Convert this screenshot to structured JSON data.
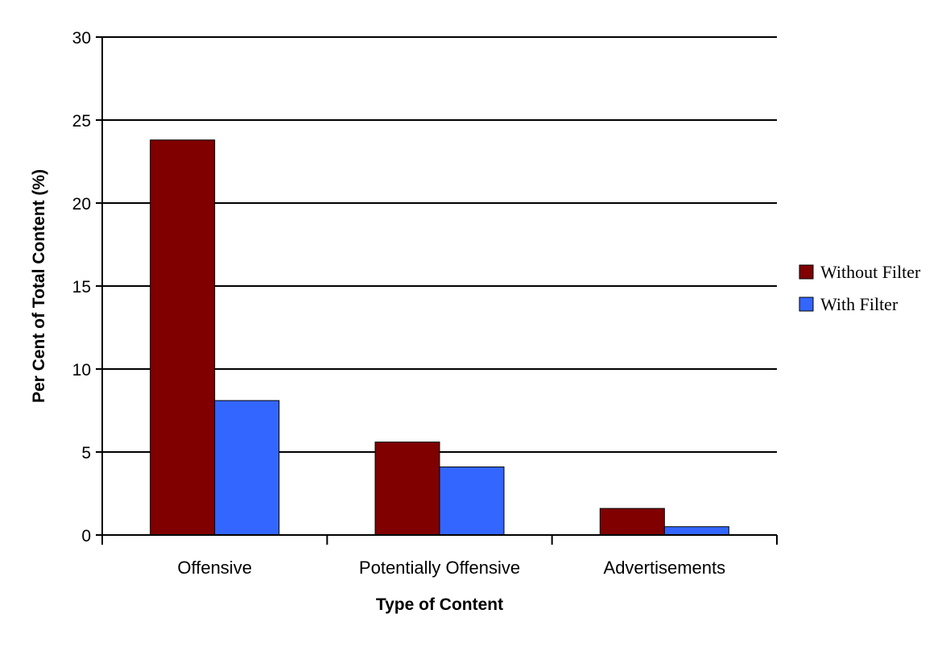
{
  "chart_data": {
    "type": "bar",
    "title": "",
    "xlabel": "Type of Content",
    "ylabel": "Per Cent of Total Content (%)",
    "categories": [
      "Offensive",
      "Potentially Offensive",
      "Advertisements"
    ],
    "series": [
      {
        "name": "Without Filter",
        "values": [
          23.8,
          5.6,
          1.6
        ],
        "color": "#800000"
      },
      {
        "name": "With Filter",
        "values": [
          8.1,
          4.1,
          0.5
        ],
        "color": "#3366ff"
      }
    ],
    "ylim": [
      0,
      30
    ],
    "yticks": [
      0,
      5,
      10,
      15,
      20,
      25,
      30
    ],
    "grid": true,
    "legend_position": "right"
  }
}
